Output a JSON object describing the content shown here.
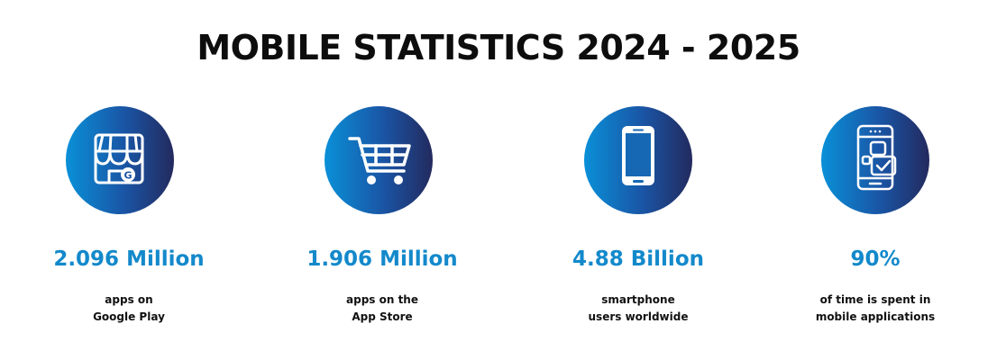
{
  "title": "MOBILE STATISTICS 2024 - 2025",
  "colors": {
    "gradient_start": "#0a90d8",
    "gradient_end": "#232a5e",
    "value_blue": "#1389cb",
    "title_black": "#0d0d0d"
  },
  "stats": [
    {
      "icon": "google-play-store-icon",
      "icon_letter": "G",
      "value": "2.096 Million",
      "desc_line1": "apps on",
      "desc_line2": "Google Play"
    },
    {
      "icon": "shopping-cart-icon",
      "value": "1.906 Million",
      "desc_line1": "apps on the",
      "desc_line2": "App Store"
    },
    {
      "icon": "smartphone-icon",
      "value": "4.88 Billion",
      "desc_line1": "smartphone",
      "desc_line2": "users worldwide"
    },
    {
      "icon": "mobile-app-icon",
      "value": "90%",
      "desc_line1": "of time is spent in",
      "desc_line2": "mobile applications"
    }
  ]
}
